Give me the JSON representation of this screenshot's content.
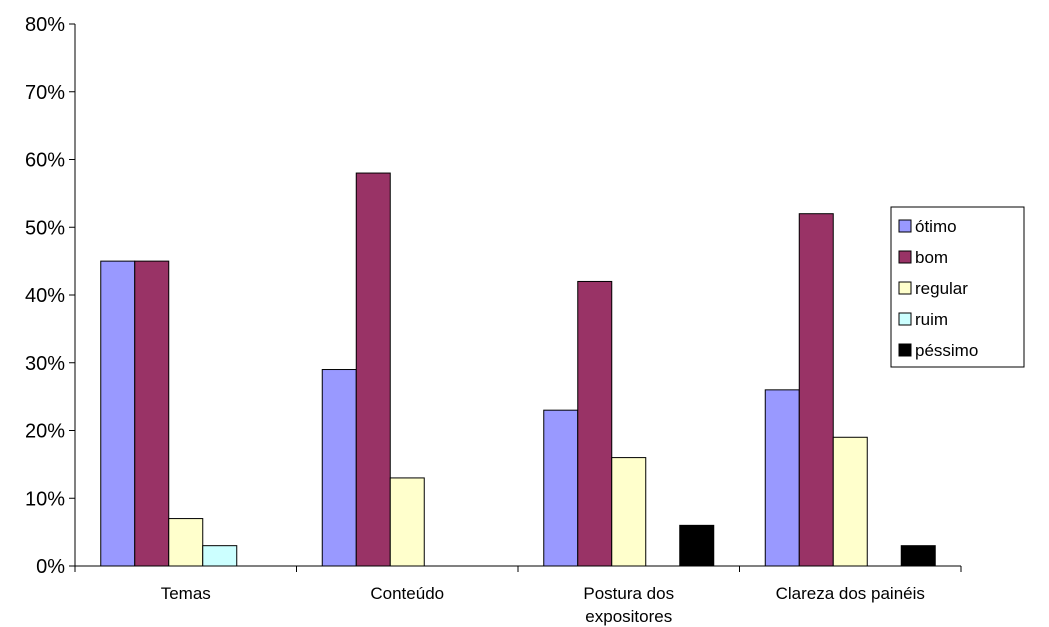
{
  "chart_data": {
    "type": "bar",
    "categories": [
      "Temas",
      "Conteúdo",
      "Postura dos expositores",
      "Clareza dos painéis"
    ],
    "category_lines": [
      [
        "Temas"
      ],
      [
        "Conteúdo"
      ],
      [
        "Postura dos",
        "expositores"
      ],
      [
        "Clareza dos painéis"
      ]
    ],
    "series": [
      {
        "name": "ótimo",
        "color": "#9999ff",
        "values": [
          45,
          29,
          23,
          26
        ]
      },
      {
        "name": "bom",
        "color": "#993366",
        "values": [
          45,
          58,
          42,
          52
        ]
      },
      {
        "name": "regular",
        "color": "#ffffcc",
        "values": [
          7,
          13,
          16,
          19
        ]
      },
      {
        "name": "ruim",
        "color": "#ccffff",
        "values": [
          3,
          0,
          0,
          0
        ]
      },
      {
        "name": "péssimo",
        "color": "#000000",
        "values": [
          0,
          0,
          6,
          3
        ]
      }
    ],
    "yticks": [
      "0%",
      "10%",
      "20%",
      "30%",
      "40%",
      "50%",
      "60%",
      "70%",
      "80%"
    ],
    "ylim": [
      0,
      80
    ],
    "grid": false,
    "legend": "right"
  }
}
